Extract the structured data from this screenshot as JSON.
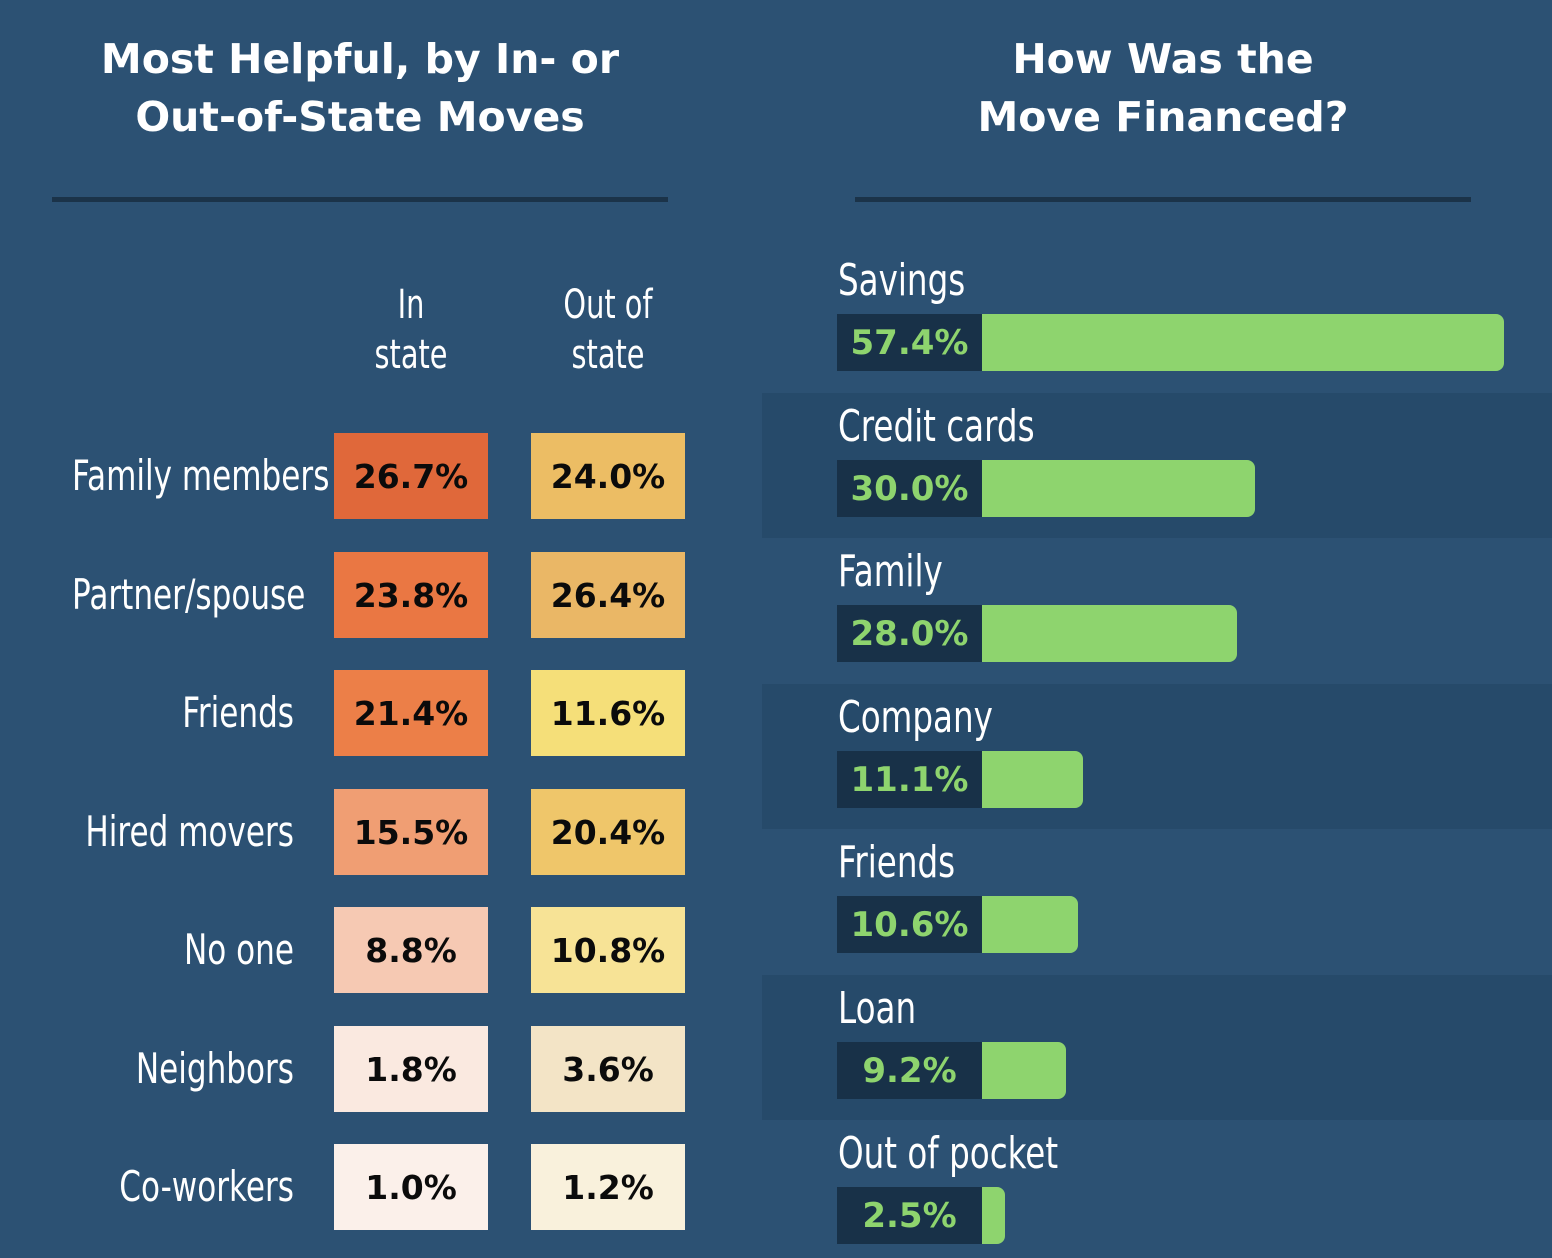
{
  "left_title": [
    "Most Helpful, by In- or",
    "Out-of-State Moves"
  ],
  "right_title": [
    "How Was the",
    "Move Financed?"
  ],
  "heat_columns": [
    [
      "In",
      "state"
    ],
    [
      "Out of",
      "state"
    ]
  ],
  "chart_data": [
    {
      "type": "heatmap",
      "title": "Most Helpful, by In- or Out-of-State Moves",
      "rows": [
        "Family members",
        "Partner/spouse",
        "Friends",
        "Hired movers",
        "No one",
        "Neighbors",
        "Co-workers"
      ],
      "columns": [
        "In state",
        "Out of state"
      ],
      "values": [
        [
          26.7,
          24.0
        ],
        [
          23.8,
          26.4
        ],
        [
          21.4,
          11.6
        ],
        [
          15.5,
          20.4
        ],
        [
          8.8,
          10.8
        ],
        [
          1.8,
          3.6
        ],
        [
          1.0,
          1.2
        ]
      ],
      "labels": [
        [
          "26.7%",
          "24.0%"
        ],
        [
          "23.8%",
          "26.4%"
        ],
        [
          "21.4%",
          "11.6%"
        ],
        [
          "15.5%",
          "20.4%"
        ],
        [
          "8.8%",
          "10.8%"
        ],
        [
          "1.8%",
          "3.6%"
        ],
        [
          "1.0%",
          "1.2%"
        ]
      ],
      "colors": {
        "in_state": [
          "#e0683a",
          "#ea7743",
          "#ec7f48",
          "#f09e73",
          "#f6c9b3",
          "#fae9e0",
          "#fbf0ea"
        ],
        "out_of_state": [
          "#ecbd64",
          "#eab766",
          "#f5df79",
          "#efc66a",
          "#f7e396",
          "#f3e4c6",
          "#f9f1dc"
        ]
      }
    },
    {
      "type": "bar",
      "orientation": "horizontal",
      "title": "How Was the Move Financed?",
      "categories": [
        "Savings",
        "Credit cards",
        "Family",
        "Company",
        "Friends",
        "Loan",
        "Out of pocket"
      ],
      "values": [
        57.4,
        30.0,
        28.0,
        11.1,
        10.6,
        9.2,
        2.5
      ],
      "labels": [
        "57.4%",
        "30.0%",
        "28.0%",
        "11.1%",
        "10.6%",
        "9.2%",
        "2.5%"
      ],
      "bar_color": "#8ed46e",
      "xlim": [
        0,
        57.4
      ]
    }
  ]
}
